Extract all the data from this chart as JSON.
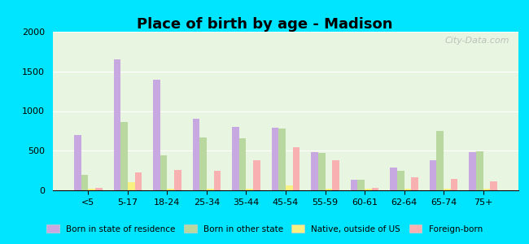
{
  "title": "Place of birth by age - Madison",
  "categories": [
    "<5",
    "5-17",
    "18-24",
    "25-34",
    "35-44",
    "45-54",
    "55-59",
    "60-61",
    "62-64",
    "65-74",
    "75+"
  ],
  "series": {
    "Born in state of residence": [
      700,
      1650,
      1400,
      900,
      800,
      790,
      480,
      130,
      290,
      380,
      480
    ],
    "Born in other state": [
      200,
      860,
      440,
      670,
      660,
      780,
      470,
      130,
      250,
      750,
      490
    ],
    "Native, outside of US": [
      20,
      100,
      20,
      20,
      20,
      60,
      20,
      20,
      20,
      20,
      20
    ],
    "Foreign-born": [
      30,
      230,
      260,
      250,
      380,
      540,
      380,
      30,
      160,
      140,
      110
    ]
  },
  "colors": {
    "Born in state of residence": "#c8a8e0",
    "Born in other state": "#b8d8a0",
    "Native, outside of US": "#f8f080",
    "Foreign-born": "#f8b0b0"
  },
  "ylim": [
    0,
    2000
  ],
  "yticks": [
    0,
    500,
    1000,
    1500,
    2000
  ],
  "background_color": "#e8f5e0",
  "outer_background": "#00e5ff",
  "watermark": "City-Data.com",
  "legend_labels": [
    "Born in state of residence",
    "Born in other state",
    "Native, outside of US",
    "Foreign-born"
  ]
}
